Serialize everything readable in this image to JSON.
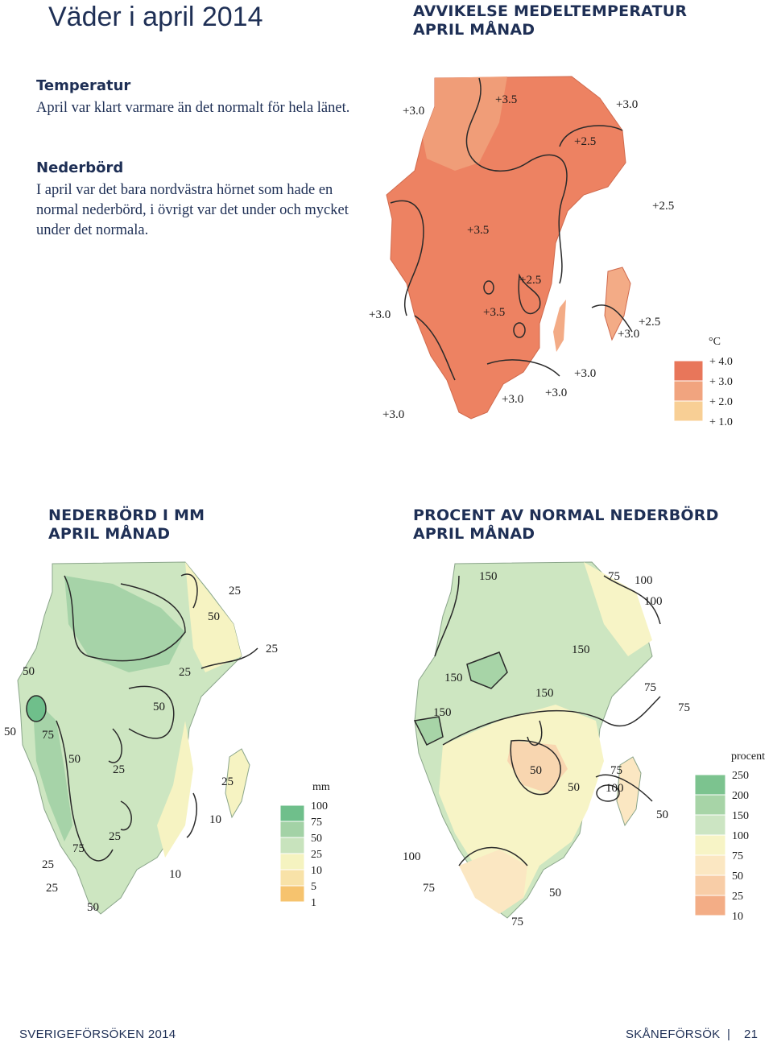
{
  "page_title": "Väder i april 2014",
  "temp_map": {
    "heading": [
      "AVVIKELSE MEDELTEMPERATUR",
      "APRIL MÅNAD"
    ],
    "labels": [
      "+3.0",
      "+3.5",
      "+3.0",
      "+2.5",
      "+2.5",
      "+3.5",
      "+2.5",
      "+3.0",
      "+3.5",
      "+2.5",
      "+3.0",
      "+3.0",
      "+3.0",
      "+3.0",
      "+3.0"
    ],
    "legend": {
      "unit": "°C",
      "values": [
        "+ 4.0",
        "+ 3.0",
        "+ 2.0",
        "+ 1.0"
      ],
      "colors": [
        "#e8765a",
        "#f1a47f",
        "#f8cf95"
      ]
    }
  },
  "text": {
    "temp_heading": "Temperatur",
    "temp_body": "April var klart varmare än det normalt för hela länet.",
    "precip_heading": "Nederbörd",
    "precip_body": "I april var det bara nordvästra hörnet som hade en normal nederbörd, i övrigt var det under och mycket under det normala."
  },
  "precip_map": {
    "heading": [
      "NEDERBÖRD I MM",
      "APRIL MÅNAD"
    ],
    "labels": [
      "25",
      "50",
      "25",
      "50",
      "25",
      "50",
      "50",
      "75",
      "50",
      "25",
      "25",
      "10",
      "25",
      "75",
      "25",
      "25",
      "10",
      "50"
    ],
    "legend": {
      "unit": "mm",
      "values": [
        "100",
        "75",
        "50",
        "25",
        "10",
        "5",
        "1"
      ],
      "colors": [
        "#6fbf8b",
        "#a3d2a6",
        "#c8e3bd",
        "#f5f3c0",
        "#f8e2a8",
        "#f6c36e"
      ]
    }
  },
  "percent_map": {
    "heading": [
      "PROCENT AV NORMAL NEDERBÖRD",
      "APRIL MÅNAD"
    ],
    "labels": [
      "150",
      "75",
      "100",
      "100",
      "150",
      "150",
      "150",
      "75",
      "150",
      "75",
      "50",
      "75",
      "50",
      "100",
      "50",
      "100",
      "75",
      "50",
      "75"
    ],
    "legend": {
      "unit": "procent",
      "values": [
        "250",
        "200",
        "150",
        "100",
        "75",
        "50",
        "25",
        "10"
      ],
      "colors": [
        "#7cc38f",
        "#a7d4a7",
        "#cce5c3",
        "#f7f4c6",
        "#fbe7c2",
        "#f8cda7",
        "#f3ad86"
      ]
    }
  },
  "footer": {
    "left": "SVERIGEFÖRSÖKEN 2014",
    "right_org": "SKÅNEFÖRSÖK",
    "separator": "|",
    "page_number": "21"
  }
}
